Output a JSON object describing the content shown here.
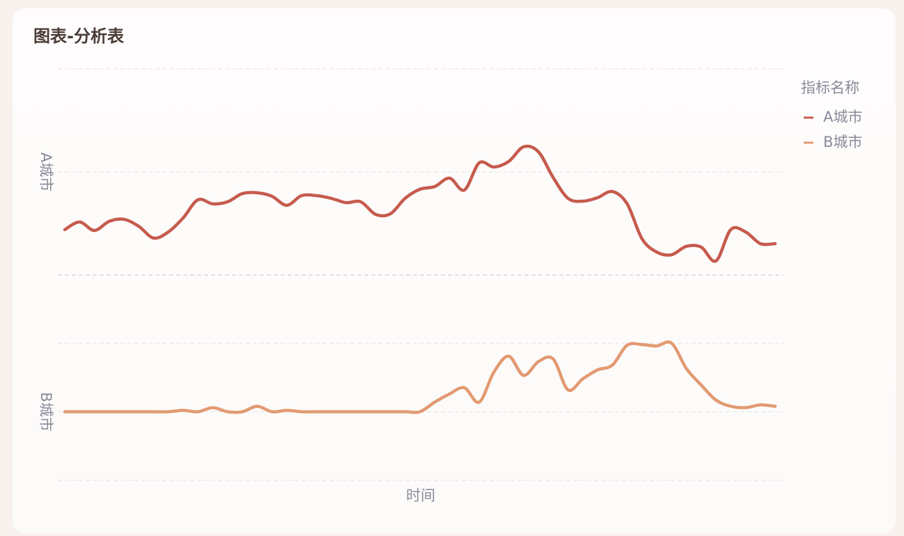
{
  "chart_data": {
    "type": "line",
    "title": "图表-分析表",
    "legend_title": "指标名称",
    "x_label": "时间",
    "grid": true,
    "categories": [
      null,
      null,
      null,
      null,
      null,
      null,
      null,
      null,
      null,
      null,
      null,
      null,
      null,
      null,
      null,
      null,
      null,
      null,
      null,
      null,
      null,
      null,
      null,
      null,
      null,
      null,
      null,
      null,
      null,
      null,
      null,
      null,
      null,
      null,
      null,
      null,
      null,
      null,
      null,
      null,
      null,
      null,
      null,
      null,
      null,
      null,
      null,
      null,
      null
    ],
    "series": [
      {
        "name": "A城市",
        "color": "#c65b4d",
        "ylim": [
          0,
          100
        ],
        "yticks": [
          0,
          50,
          100
        ],
        "values": [
          22.0,
          25.7,
          21.6,
          26.0,
          27.0,
          23.6,
          17.9,
          20.9,
          27.7,
          36.5,
          34.5,
          35.5,
          39.5,
          39.9,
          38.2,
          33.8,
          38.5,
          38.5,
          37.2,
          35.1,
          35.5,
          29.4,
          29.7,
          37.2,
          41.6,
          42.9,
          47.0,
          41.2,
          54.4,
          52.4,
          55.1,
          62.2,
          59.8,
          47.3,
          37.2,
          35.8,
          37.5,
          40.5,
          34.5,
          17.6,
          11.1,
          9.8,
          13.9,
          13.5,
          6.8,
          22.0,
          20.9,
          15.2,
          15.2
        ]
      },
      {
        "name": "B城市",
        "color": "#e29a72",
        "ylim": [
          -100,
          100
        ],
        "yticks": [
          -100,
          0,
          100
        ],
        "values": [
          0,
          0,
          0,
          0,
          0,
          0,
          0,
          0,
          2,
          0,
          6,
          0,
          0,
          8,
          0,
          2,
          0,
          0,
          0,
          0,
          0,
          0,
          0,
          0,
          0,
          14,
          26,
          35,
          14,
          58,
          81,
          53,
          73,
          77,
          32,
          48,
          61,
          68,
          97,
          98,
          96,
          100,
          63,
          39,
          17,
          8,
          6,
          10,
          8
        ]
      }
    ]
  }
}
